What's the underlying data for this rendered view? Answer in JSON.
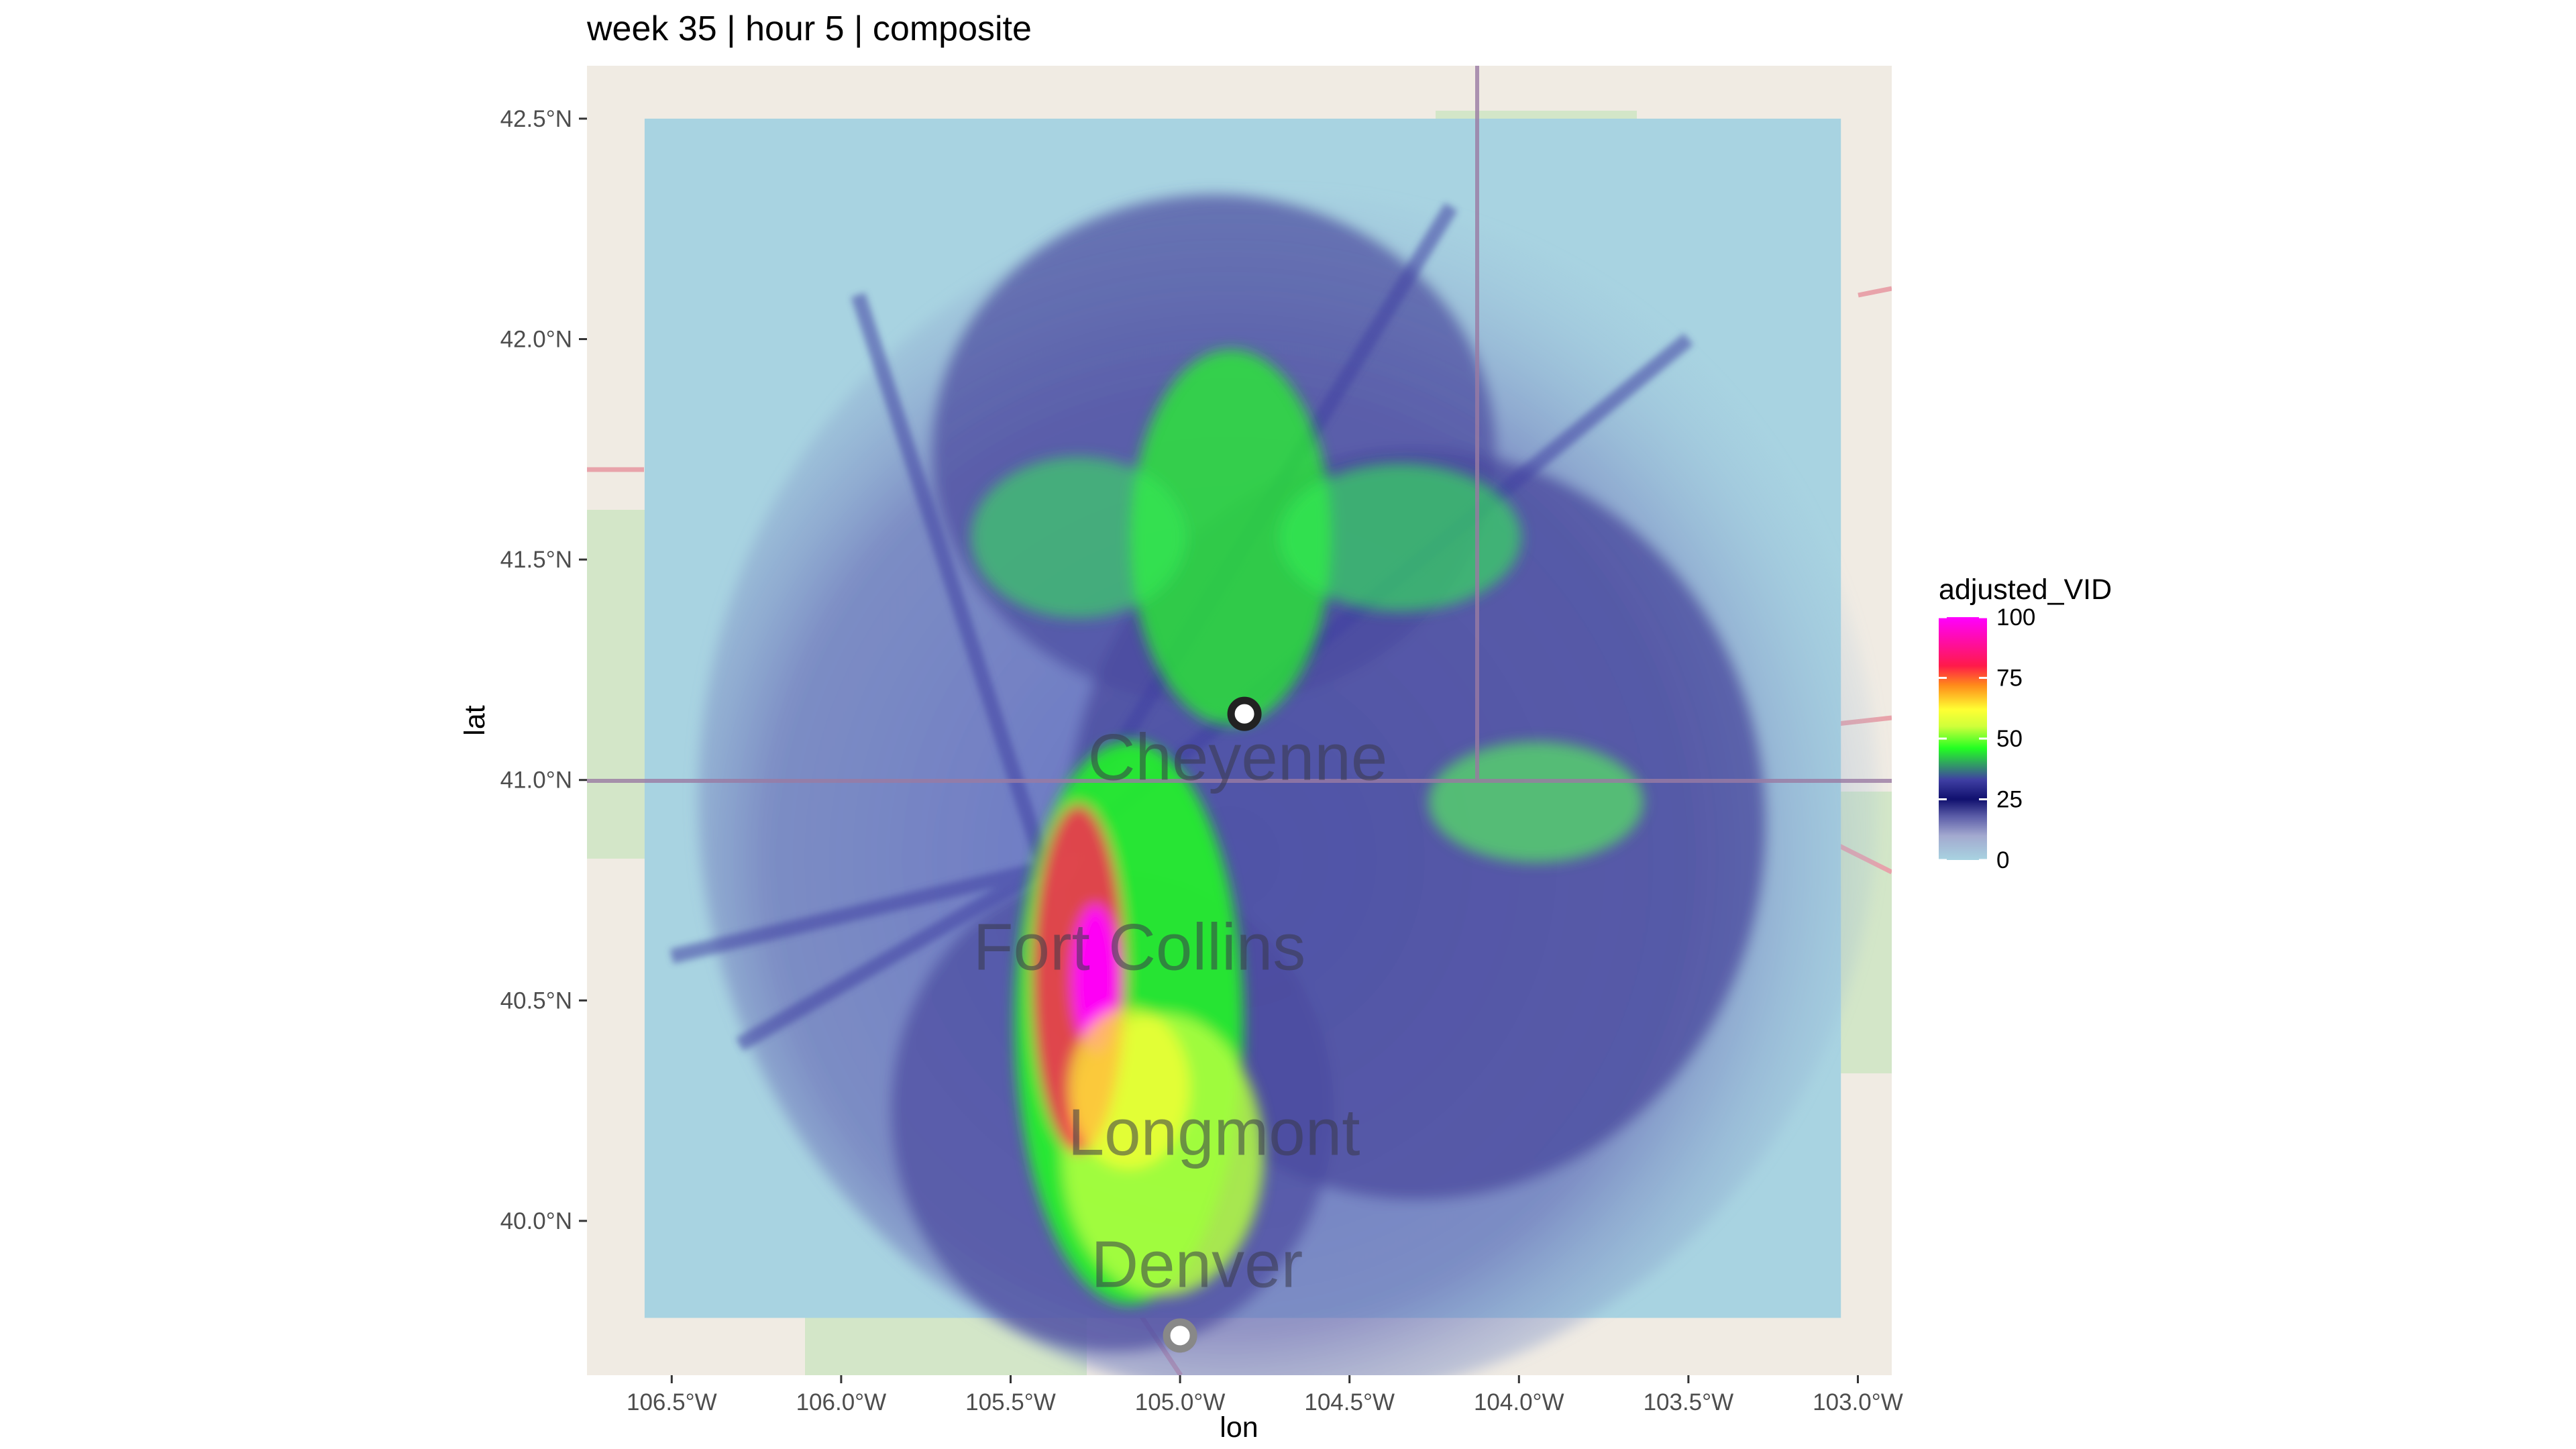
{
  "title": "week 35 | hour 5 | composite",
  "x_axis": {
    "label": "lon",
    "ticks": [
      "106.5°W",
      "106.0°W",
      "105.5°W",
      "105.0°W",
      "104.5°W",
      "104.0°W",
      "103.5°W",
      "103.0°W"
    ],
    "tick_values": [
      -106.5,
      -106.0,
      -105.5,
      -105.0,
      -104.5,
      -104.0,
      -103.5,
      -103.0
    ],
    "range": [
      -106.75,
      -102.9
    ]
  },
  "y_axis": {
    "label": "lat",
    "ticks": [
      "40.0°N",
      "40.5°N",
      "41.0°N",
      "41.5°N",
      "42.0°N",
      "42.5°N"
    ],
    "tick_values": [
      40.0,
      40.5,
      41.0,
      41.5,
      42.0,
      42.5
    ],
    "range": [
      39.65,
      42.62
    ]
  },
  "legend": {
    "title": "adjusted_VID",
    "ticks": [
      "100",
      "75",
      "50",
      "25",
      "0"
    ],
    "tick_values": [
      100,
      75,
      50,
      25,
      0
    ],
    "colors": [
      "#a8d3e1",
      "#a3a9cf",
      "#5b5ca8",
      "#10106e",
      "#3f3fa3",
      "#22ff22",
      "#cfff3a",
      "#ffff33",
      "#ff8a1a",
      "#ff1a4a",
      "#ff00ff"
    ]
  },
  "map_labels": [
    {
      "text": "Cheyenne",
      "lon": -104.83,
      "lat": 41.0
    },
    {
      "text": "Fort Collins",
      "lon": -105.12,
      "lat": 40.57
    },
    {
      "text": "Longmont",
      "lon": -104.9,
      "lat": 40.15
    },
    {
      "text": "Denver",
      "lon": -104.95,
      "lat": 39.85
    }
  ],
  "radar_sites": [
    {
      "name": "cheyenne-radar-marker",
      "lon": -104.81,
      "lat": 41.15,
      "fill": "#ffffff",
      "stroke": "#222222"
    },
    {
      "name": "denver-radar-marker",
      "lon": -105.0,
      "lat": 39.74,
      "fill": "#ffffff",
      "stroke": "#888888"
    }
  ],
  "data_extent": {
    "lon": [
      -106.58,
      -103.05
    ],
    "lat": [
      39.78,
      42.5
    ]
  }
}
